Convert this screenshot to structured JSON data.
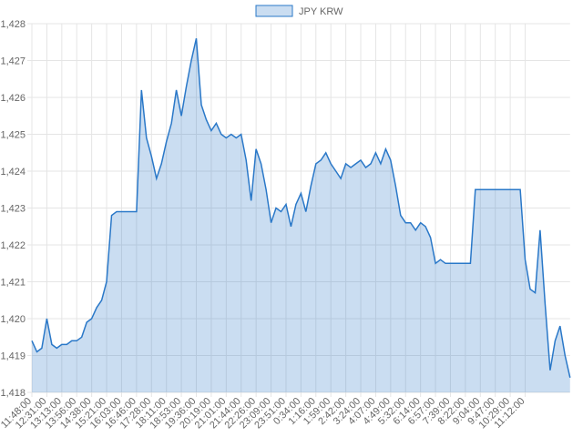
{
  "chart_data": {
    "type": "line",
    "categories": [
      "11:48:00",
      null,
      null,
      "12:31:00",
      null,
      null,
      "13:13:00",
      null,
      null,
      "13:56:00",
      null,
      null,
      "14:38:00",
      null,
      null,
      "15:21:00",
      null,
      null,
      "16:03:00",
      null,
      null,
      "16:46:00",
      null,
      null,
      "17:28:00",
      null,
      null,
      "18:11:00",
      null,
      null,
      "18:53:00",
      null,
      null,
      "19:36:00",
      null,
      null,
      "20:19:00",
      null,
      null,
      "21:01:00",
      null,
      null,
      "21:44:00",
      null,
      null,
      "22:26:00",
      null,
      null,
      "23:09:00",
      null,
      null,
      "23:51:00",
      null,
      null,
      "0:34:00",
      null,
      null,
      "1:16:00",
      null,
      null,
      "1:59:00",
      null,
      null,
      "2:42:00",
      null,
      null,
      "3:24:00",
      null,
      null,
      "4:07:00",
      null,
      null,
      "4:49:00",
      null,
      null,
      "5:32:00",
      null,
      null,
      "6:14:00",
      null,
      null,
      "6:57:00",
      null,
      null,
      "7:39:00",
      null,
      null,
      "8:22:00",
      null,
      null,
      "9:04:00",
      null,
      null,
      "9:47:00",
      null,
      null,
      "10:29:00",
      null,
      null,
      "11:12:00",
      null,
      null,
      null,
      null,
      null,
      null,
      null,
      null,
      null
    ],
    "series": [
      {
        "name": "JPY KRW",
        "color": "#2a78c8",
        "fill": "rgba(42,120,200,0.25)",
        "values": [
          1419.4,
          1419.1,
          1419.2,
          1420.0,
          1419.3,
          1419.2,
          1419.3,
          1419.3,
          1419.4,
          1419.4,
          1419.5,
          1419.9,
          1420.0,
          1420.3,
          1420.5,
          1421.0,
          1422.8,
          1422.9,
          1422.9,
          1422.9,
          1422.9,
          1422.9,
          1426.2,
          1424.9,
          1424.4,
          1423.8,
          1424.2,
          1424.8,
          1425.3,
          1426.2,
          1425.5,
          1426.3,
          1427.0,
          1427.6,
          1425.8,
          1425.4,
          1425.1,
          1425.3,
          1425.0,
          1424.9,
          1425.0,
          1424.9,
          1425.0,
          1424.3,
          1423.2,
          1424.6,
          1424.2,
          1423.5,
          1422.6,
          1423.0,
          1422.9,
          1423.1,
          1422.5,
          1423.1,
          1423.4,
          1422.9,
          1423.6,
          1424.2,
          1424.3,
          1424.5,
          1424.2,
          1424.0,
          1423.8,
          1424.2,
          1424.1,
          1424.2,
          1424.3,
          1424.1,
          1424.2,
          1424.5,
          1424.2,
          1424.6,
          1424.3,
          1423.6,
          1422.8,
          1422.6,
          1422.6,
          1422.4,
          1422.6,
          1422.5,
          1422.2,
          1421.5,
          1421.6,
          1421.5,
          1421.5,
          1421.5,
          1421.5,
          1421.5,
          1421.5,
          1423.5,
          1423.5,
          1423.5,
          1423.5,
          1423.5,
          1423.5,
          1423.5,
          1423.5,
          1423.5,
          1423.5,
          1421.6,
          1420.8,
          1420.7,
          1422.4,
          1420.4,
          1418.6,
          1419.4,
          1419.8,
          1419.0,
          1418.4
        ]
      }
    ],
    "ylim": [
      1418,
      1428
    ],
    "yticks": [
      {
        "value": 1418,
        "label": "1,418"
      },
      {
        "value": 1419,
        "label": "1,419"
      },
      {
        "value": 1420,
        "label": "1,420"
      },
      {
        "value": 1421,
        "label": "1,421"
      },
      {
        "value": 1422,
        "label": "1,422"
      },
      {
        "value": 1423,
        "label": "1,423"
      },
      {
        "value": 1424,
        "label": "1,424"
      },
      {
        "value": 1425,
        "label": "1,425"
      },
      {
        "value": 1426,
        "label": "1,426"
      },
      {
        "value": 1427,
        "label": "1,427"
      },
      {
        "value": 1428,
        "label": "1,428"
      }
    ],
    "grid": true,
    "legend": "top"
  }
}
